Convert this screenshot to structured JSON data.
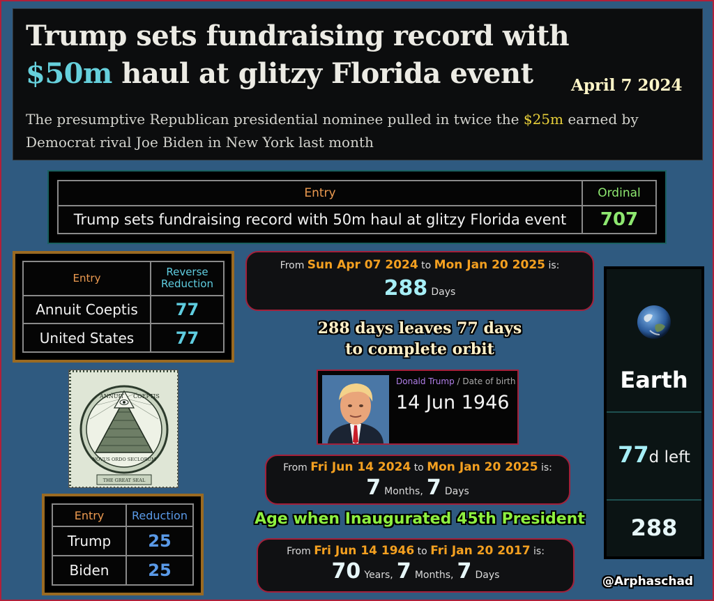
{
  "header": {
    "headline_pre": "Trump sets fundraising record with ",
    "headline_highlight": "$50m",
    "headline_post": " haul at glitzy Florida event",
    "date": "April 7 2024",
    "standfirst_pre": "The presumptive Republican presidential nominee pulled in twice the ",
    "standfirst_highlight": "$25m",
    "standfirst_post": " earned by Democrat rival Joe Biden in New York last month"
  },
  "ordinal_table": {
    "col_entry": "Entry",
    "col_cipher": "Ordinal",
    "rows": [
      {
        "entry": "Trump sets fundraising record with 50m haul at glitzy Florida event",
        "value": "707"
      }
    ]
  },
  "reverse_reduction_table": {
    "col_entry": "Entry",
    "col_cipher_line1": "Reverse",
    "col_cipher_line2": "Reduction",
    "rows": [
      {
        "entry": "Annuit Coeptis",
        "value": "77"
      },
      {
        "entry": "United States",
        "value": "77"
      }
    ]
  },
  "reduction_table": {
    "col_entry": "Entry",
    "col_cipher": "Reduction",
    "rows": [
      {
        "entry": "Trump",
        "value": "25"
      },
      {
        "entry": "Biden",
        "value": "25"
      }
    ]
  },
  "calc1": {
    "from": "From",
    "start": "Sun Apr 07 2024",
    "to": "to",
    "end": "Mon Jan 20 2025",
    "is": "is:",
    "value": "288",
    "unit": "Days"
  },
  "orbit_caption": {
    "line1": "288 days leaves 77 days",
    "line2": "to complete orbit"
  },
  "trump_card": {
    "name": "Donald Trump",
    "label": " / Date of birth",
    "dob": "14 Jun 1946"
  },
  "calc2": {
    "from": "From",
    "start": "Fri Jun 14 2024",
    "to": "to",
    "end": "Mon Jan 20 2025",
    "is": "is:",
    "months": "7",
    "months_unit": "Months,",
    "days": "7",
    "days_unit": "Days"
  },
  "inaug_caption": "Age when Inaugurated 45th President",
  "calc3": {
    "from": "From",
    "start": "Fri Jun 14 1946",
    "to": "to",
    "end": "Fri Jan 20 2017",
    "is": "is:",
    "years": "70",
    "years_unit": "Years,",
    "months": "7",
    "months_unit": "Months,",
    "days": "7",
    "days_unit": "Days"
  },
  "earth_panel": {
    "planet": "Earth",
    "left_value": "77",
    "left_unit": "d left",
    "total": "288"
  },
  "handle": "@Arphaschad",
  "seal": {
    "top_text": "ANNUIT",
    "top_text2": "COEPTIS",
    "motto": "NOVUS ORDO SECLORUM",
    "caption": "THE GREAT SEAL"
  },
  "colors": {
    "background": "#2f5a80",
    "accent_red": "#a3203a",
    "headline_highlight": "#66d0dc",
    "standfirst_highlight": "#e8d03a",
    "date_orange": "#f4a020",
    "ordinal_green": "#8ee870",
    "reverse_cyan": "#5fcde0",
    "reduction_blue": "#5a9ae8"
  }
}
